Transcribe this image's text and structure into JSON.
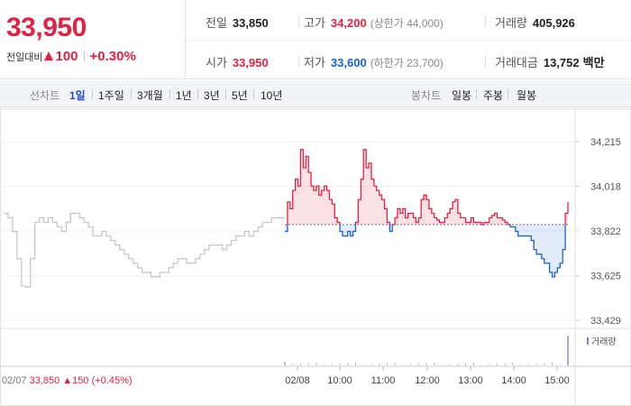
{
  "quote": {
    "price": "33,950",
    "change_label": "전일대비",
    "change_amount": "100",
    "change_pct": "+0.30%"
  },
  "stats": {
    "prev_close_label": "전일",
    "prev_close": "33,850",
    "high_label": "고가",
    "high": "34,200",
    "upper_limit_note": "(상한가 44,000)",
    "volume_label": "거래량",
    "volume": "405,926",
    "open_label": "시가",
    "open": "33,950",
    "low_label": "저가",
    "low": "33,600",
    "lower_limit_note": "(하한가 23,700)",
    "amount_label": "거래대금",
    "amount": "13,752",
    "amount_unit": "백만"
  },
  "toolbar": {
    "line_chart_label": "선차트",
    "periods": [
      "1일",
      "1주일",
      "3개월",
      "1년",
      "3년",
      "5년",
      "10년"
    ],
    "active_period": "1일",
    "candle_label": "봉차트",
    "candle_periods": [
      "일봉",
      "주봉",
      "월봉"
    ]
  },
  "chart_data": {
    "type": "line",
    "y_axis_labels": [
      "34,215",
      "34,018",
      "33,822",
      "33,625",
      "33,429"
    ],
    "ylim": [
      33429,
      34215
    ],
    "baseline": 33850,
    "x_tick_labels": [
      "02/08",
      "10:00",
      "11:00",
      "12:00",
      "13:00",
      "14:00",
      "15:00"
    ],
    "volume_legend": "거래량",
    "prev_day": {
      "label_date": "02/07",
      "label_close": "33,850",
      "label_change": "150 (+0.45%)",
      "color": "#c4c4c8",
      "values": [
        33900,
        33880,
        33820,
        33700,
        33580,
        33575,
        33700,
        33860,
        33880,
        33860,
        33880,
        33860,
        33840,
        33820,
        33860,
        33900,
        33900,
        33880,
        33860,
        33840,
        33800,
        33800,
        33820,
        33800,
        33780,
        33760,
        33740,
        33720,
        33700,
        33680,
        33660,
        33640,
        33640,
        33620,
        33620,
        33640,
        33640,
        33660,
        33680,
        33700,
        33700,
        33680,
        33680,
        33700,
        33720,
        33740,
        33760,
        33760,
        33760,
        33740,
        33760,
        33780,
        33800,
        33800,
        33820,
        33800,
        33820,
        33840,
        33860,
        33860,
        33880,
        33880,
        33880,
        33880
      ]
    },
    "today": {
      "up_color": "#e12343",
      "down_color": "#1b62d6",
      "values": [
        33820,
        33950,
        33920,
        34000,
        34050,
        34020,
        34180,
        34100,
        34150,
        34080,
        34020,
        34000,
        34020,
        33980,
        34000,
        34020,
        34000,
        33960,
        33940,
        33880,
        33860,
        33820,
        33800,
        33800,
        33820,
        33800,
        33820,
        33860,
        33960,
        34050,
        34180,
        34100,
        34120,
        34050,
        34020,
        34000,
        33980,
        33960,
        33920,
        33860,
        33820,
        33850,
        33880,
        33920,
        33900,
        33920,
        33880,
        33900,
        33900,
        33880,
        33860,
        33880,
        33960,
        33980,
        33960,
        33920,
        33900,
        33880,
        33870,
        33860,
        33860,
        33880,
        33900,
        33920,
        33950,
        33960,
        33900,
        33880,
        33880,
        33860,
        33860,
        33880,
        33860,
        33860,
        33860,
        33850,
        33860,
        33860,
        33880,
        33890,
        33900,
        33880,
        33880,
        33870,
        33860,
        33850,
        33840,
        33840,
        33820,
        33800,
        33800,
        33800,
        33800,
        33800,
        33780,
        33740,
        33720,
        33720,
        33700,
        33680,
        33680,
        33640,
        33620,
        33640,
        33660,
        33680,
        33740,
        33900,
        33950
      ]
    }
  }
}
